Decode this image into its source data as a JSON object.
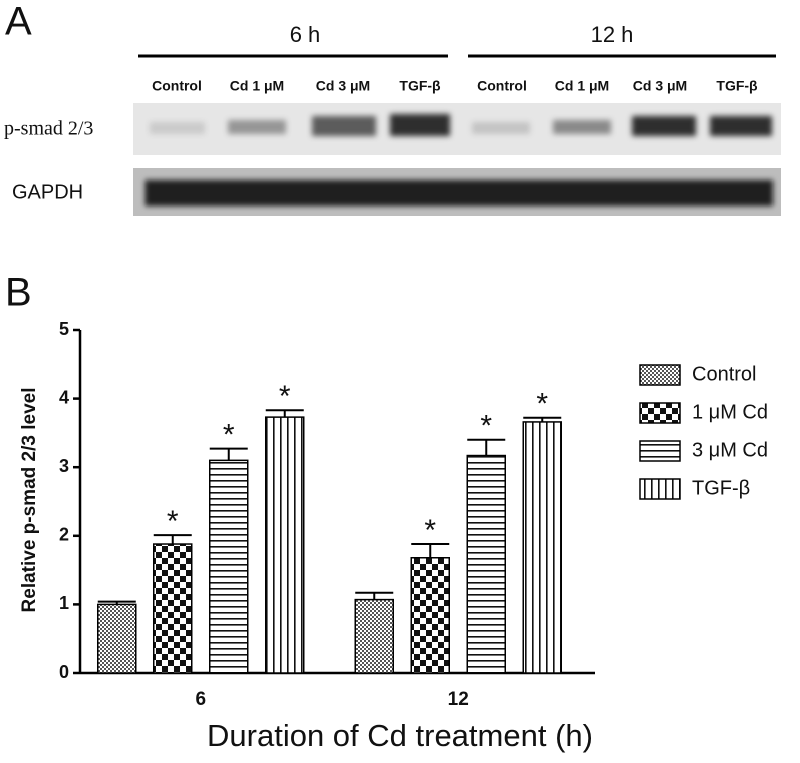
{
  "panel_a": {
    "label": "A",
    "time_labels": [
      "6 h",
      "12 h"
    ],
    "lanes": [
      "Control",
      "Cd 1 μM",
      "Cd 3 μM",
      "TGF-β",
      "Control",
      "Cd 1 μM",
      "Cd 3 μM",
      "TGF-β"
    ],
    "rows": [
      "p-smad 2/3",
      "GAPDH"
    ]
  },
  "chart_data": {
    "type": "bar",
    "panel_label": "B",
    "ylabel": "Relative p-smad 2/3 level",
    "xlabel": "Duration of Cd treatment (h)",
    "categories": [
      "6",
      "12"
    ],
    "series": [
      {
        "name": "Control",
        "pattern": "fine-check",
        "values": [
          1.0,
          1.07
        ],
        "errors": [
          0.04,
          0.1
        ]
      },
      {
        "name": "1 μM Cd",
        "pattern": "coarse-check",
        "values": [
          1.88,
          1.68
        ],
        "errors": [
          0.13,
          0.2
        ],
        "star": "*"
      },
      {
        "name": "3 μM Cd",
        "pattern": "h-lines",
        "values": [
          3.1,
          3.17
        ],
        "errors": [
          0.17,
          0.23
        ],
        "star": "*"
      },
      {
        "name": "TGF-β",
        "pattern": "v-lines",
        "values": [
          3.73,
          3.66
        ],
        "errors": [
          0.1,
          0.06
        ],
        "star": "*"
      }
    ],
    "ylim": [
      0,
      5
    ],
    "yticks": [
      0,
      1,
      2,
      3,
      4,
      5
    ],
    "legend": "right"
  }
}
